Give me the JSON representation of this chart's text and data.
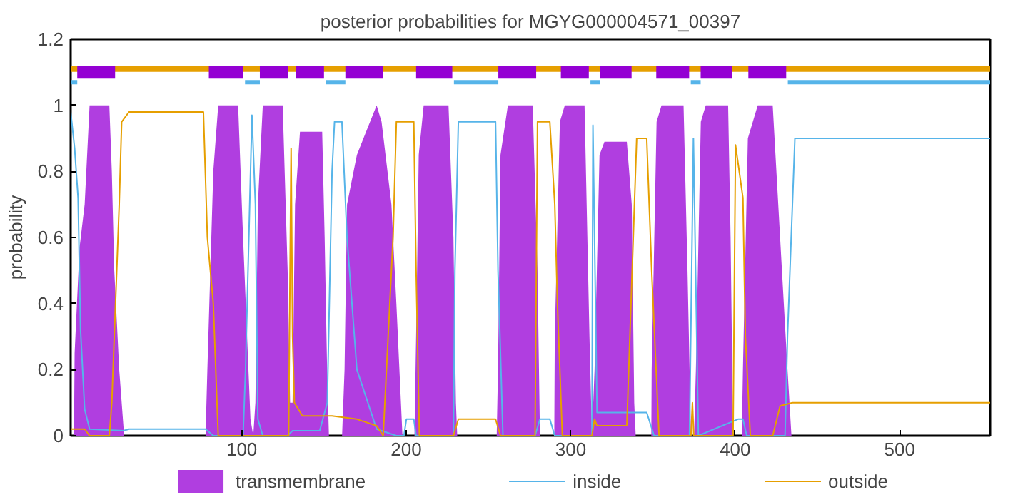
{
  "chart_data": {
    "type": "line",
    "title": "posterior probabilities for MGYG000004571_00397",
    "ylabel": "probability",
    "xlim": [
      -4,
      555
    ],
    "xticks": [
      100,
      200,
      300,
      400,
      500
    ],
    "ylim": [
      0,
      1.2
    ],
    "yticks": [
      0,
      0.2,
      0.4,
      0.6,
      0.8,
      1,
      1.2
    ],
    "grid": false,
    "legend": "bottom",
    "series": [
      {
        "name": "transmembrane",
        "type": "area",
        "color": "#b03ee0",
        "x": [
          -2,
          -1.6,
          1.4,
          4.5,
          7.5,
          19.5,
          21,
          22.5,
          25.5,
          28.5,
          78,
          79.1,
          82.7,
          85.7,
          97.8,
          100.8,
          105.3,
          107,
          108.3,
          109.8,
          112.8,
          124.9,
          127.9,
          129.4,
          130.9,
          132.4,
          135.4,
          148.9,
          150.4,
          151.9,
          153,
          161,
          162.5,
          164,
          170,
          182,
          185,
          191,
          194,
          197.7,
          205,
          206,
          207.6,
          210.6,
          225.7,
          228.7,
          230.2,
          231,
          255,
          255.8,
          257.3,
          261.8,
          276.9,
          279.8,
          281.3,
          290,
          290.3,
          293.4,
          296.4,
          308.4,
          311.4,
          312.9,
          314.5,
          317.5,
          320.5,
          334.1,
          337.1,
          338.6,
          339.5,
          349,
          349.2,
          352.2,
          355.2,
          368.6,
          371,
          373.1,
          375,
          376.1,
          379.1,
          382.1,
          395.7,
          397.2,
          398.7,
          404,
          404.7,
          407.7,
          413.7,
          422.8,
          427.3,
          431.8,
          434.2,
          555
        ],
        "values": [
          0,
          0.25,
          0.57,
          0.7,
          1.0,
          1.0,
          0.8,
          0.5,
          0.2,
          0,
          0,
          0.2,
          0.8,
          1.0,
          1.0,
          0.6,
          0.05,
          0,
          0.1,
          0.7,
          1.0,
          1.0,
          0.5,
          0.1,
          0.1,
          0.7,
          0.92,
          0.92,
          0.6,
          0.2,
          0,
          0,
          0.2,
          0.7,
          0.85,
          1.0,
          0.95,
          0.7,
          0.4,
          0,
          0,
          0.3,
          0.85,
          1.0,
          1.0,
          0.6,
          0.1,
          0,
          0,
          0.2,
          0.85,
          1.0,
          1.0,
          0.5,
          0,
          0,
          0.3,
          0.95,
          1.0,
          1.0,
          0.3,
          0,
          0.2,
          0.85,
          0.89,
          0.89,
          0.7,
          0.1,
          0,
          0,
          0.2,
          0.95,
          1.0,
          1.0,
          0.5,
          0,
          0,
          0.2,
          0.95,
          1.0,
          1.0,
          0.6,
          0,
          0,
          0.2,
          0.9,
          1.0,
          1.0,
          0.6,
          0.2,
          0,
          0
        ]
      },
      {
        "name": "inside",
        "color": "#56b4e9",
        "x": [
          -4,
          -1.6,
          0.5,
          2,
          4.5,
          7.5,
          28,
          31.5,
          78,
          82.7,
          100.8,
          102.3,
          106.2,
          108.3,
          109.8,
          112.8,
          127.9,
          130.9,
          147.4,
          152,
          154.9,
          156.4,
          160.9,
          164,
          170,
          182,
          194,
          198.6,
          200.1,
          204.6,
          206,
          228.7,
          229.6,
          231.7,
          254.3,
          255.8,
          258.8,
          278.3,
          281.3,
          287.3,
          290.3,
          312.9,
          313.5,
          316,
          346.2,
          350.7,
          372.2,
          374.6,
          377.6,
          401.7,
          404.7,
          407,
          430.3,
          431.8,
          436.3,
          555
        ],
        "values": [
          0.98,
          0.87,
          0.72,
          0.32,
          0.08,
          0.02,
          0.015,
          0.02,
          0.02,
          0,
          0,
          0.2,
          0.97,
          0.7,
          0.05,
          0,
          0,
          0.015,
          0.015,
          0.1,
          0.8,
          0.95,
          0.95,
          0.6,
          0.2,
          0.02,
          0,
          0,
          0.05,
          0.05,
          0,
          0,
          0.5,
          0.95,
          0.95,
          0.5,
          0,
          0,
          0.05,
          0.05,
          0,
          0,
          0.94,
          0.07,
          0.07,
          0,
          0,
          0.9,
          0,
          0.05,
          0.05,
          0,
          0,
          0.3,
          0.9,
          0.9
        ]
      },
      {
        "name": "outside",
        "color": "#e69f00",
        "x": [
          -4,
          4.5,
          7.5,
          19.5,
          21,
          25.5,
          27,
          31.5,
          76.7,
          79.1,
          82.7,
          85.7,
          128.5,
          130,
          130.9,
          132,
          136.9,
          154.9,
          170,
          182,
          186,
          188,
          192,
          194,
          204.6,
          206,
          208,
          228.7,
          231.7,
          254.3,
          257.3,
          278.3,
          279.8,
          287.3,
          290.3,
          291.9,
          294.9,
          312.9,
          314.5,
          316,
          334.1,
          340.1,
          346.2,
          349.2,
          353.7,
          373.1,
          374,
          374.8,
          398.7,
          400.2,
          404.7,
          406.2,
          409.2,
          422.8,
          427.3,
          434.8,
          555
        ],
        "values": [
          0.02,
          0.02,
          0,
          0,
          0.1,
          0.7,
          0.95,
          0.98,
          0.98,
          0.6,
          0.4,
          0,
          0,
          0.87,
          0.3,
          0.1,
          0.06,
          0.06,
          0.05,
          0.03,
          0,
          0.2,
          0.6,
          0.95,
          0.95,
          0.5,
          0,
          0,
          0.05,
          0.05,
          0,
          0,
          0.95,
          0.95,
          0.7,
          0.4,
          0,
          0,
          0.05,
          0.03,
          0.03,
          0.9,
          0.9,
          0.5,
          0,
          0,
          0.1,
          0,
          0,
          0.88,
          0.72,
          0.3,
          0,
          0,
          0.09,
          0.1,
          0.1
        ]
      },
      {
        "color": "#e69f00",
        "x": [
          -4,
          555
        ],
        "values": [
          1.11,
          1.11
        ]
      },
      {
        "color": "#56b4e9",
        "x": [
          -4,
          0,
          1,
          102,
          111,
          112,
          151,
          163,
          164,
          229,
          256,
          257,
          312,
          318,
          319,
          373,
          379,
          380,
          432,
          555
        ],
        "values": [
          1.07,
          1.07,
          null,
          1.07,
          1.07,
          null,
          1.07,
          1.07,
          null,
          1.07,
          1.07,
          null,
          1.07,
          1.07,
          null,
          1.07,
          1.07,
          null,
          1.07,
          1.07
        ]
      },
      {
        "color": "#9400d3",
        "x": [
          0,
          23,
          24,
          80,
          101,
          102,
          111,
          128,
          129,
          133,
          150,
          151,
          163,
          186,
          187,
          206,
          228,
          229,
          256,
          279,
          280,
          294,
          311,
          312,
          318,
          337,
          338,
          352,
          372,
          373,
          379,
          398,
          399,
          408,
          431
        ],
        "values": [
          1.1,
          1.1,
          null,
          1.1,
          1.1,
          null,
          1.1,
          1.1,
          null,
          1.1,
          1.1,
          null,
          1.1,
          1.1,
          null,
          1.1,
          1.1,
          null,
          1.1,
          1.1,
          null,
          1.1,
          1.1,
          null,
          1.1,
          1.1,
          null,
          1.1,
          1.1,
          null,
          1.1,
          1.1,
          null,
          1.1,
          1.1
        ]
      }
    ]
  }
}
